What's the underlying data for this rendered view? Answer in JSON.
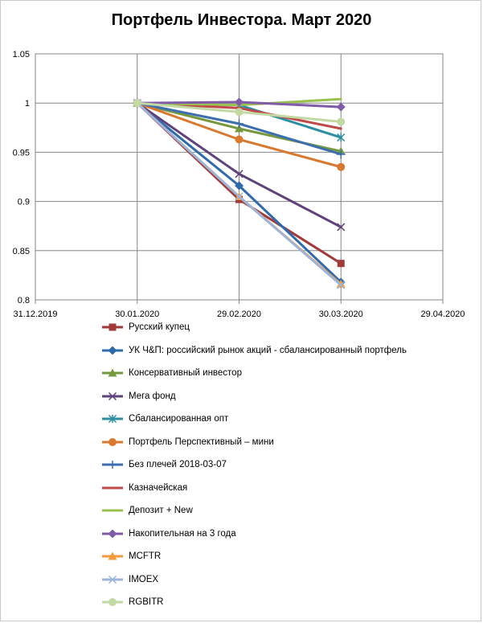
{
  "chart_data": {
    "type": "line",
    "title": "Портфель Инвестора. Март 2020",
    "x_ticks": [
      "31.12.2019",
      "30.01.2020",
      "29.02.2020",
      "30.03.2020",
      "29.04.2020"
    ],
    "x": [
      "30.01.2020",
      "29.02.2020",
      "30.03.2020"
    ],
    "ylim": [
      0.8,
      1.05
    ],
    "y_ticks": [
      "0.8",
      "0.85",
      "0.9",
      "0.95",
      "1",
      "1.05"
    ],
    "grid": true,
    "legend_position": "bottom",
    "series": [
      {
        "name": "Русский купец",
        "values": [
          1,
          0.902,
          0.837
        ],
        "color": "#a33a3a",
        "marker": "square"
      },
      {
        "name": "УК Ч&П: российский рынок акций - сбалансированный портфель",
        "values": [
          1,
          0.916,
          0.818
        ],
        "color": "#2f6bab",
        "marker": "diamond"
      },
      {
        "name": "Консервативный инвестор",
        "values": [
          1,
          0.974,
          0.951
        ],
        "color": "#77993d",
        "marker": "triangle"
      },
      {
        "name": "Мега фонд",
        "values": [
          1,
          0.928,
          0.874
        ],
        "color": "#5e437a",
        "marker": "x"
      },
      {
        "name": "Сбалансированная опт",
        "values": [
          1,
          0.998,
          0.965
        ],
        "color": "#2e8fa0",
        "marker": "star"
      },
      {
        "name": "Портфель Перспективный – мини",
        "values": [
          1,
          0.963,
          0.935
        ],
        "color": "#d9782f",
        "marker": "circle"
      },
      {
        "name": "Без плечей 2018-03-07",
        "values": [
          1,
          0.979,
          0.948
        ],
        "color": "#3d6fb0",
        "marker": "plus"
      },
      {
        "name": "Казначейская",
        "values": [
          1,
          0.995,
          0.974
        ],
        "color": "#c04848",
        "marker": "none"
      },
      {
        "name": "Депозит + New",
        "values": [
          1,
          0.998,
          1.004
        ],
        "color": "#9ac14f",
        "marker": "none"
      },
      {
        "name": "Накопительная на 3 года",
        "values": [
          1,
          1.001,
          0.996
        ],
        "color": "#7f5ba8",
        "marker": "diamond"
      },
      {
        "name": "MCFTR",
        "values": [
          1,
          0.905,
          0.816
        ],
        "color": "#f59a3c",
        "marker": "triangle"
      },
      {
        "name": "IMOEX",
        "values": [
          1,
          0.905,
          0.815
        ],
        "color": "#9db5d8",
        "marker": "x"
      },
      {
        "name": "RGBITR",
        "values": [
          1,
          0.991,
          0.981
        ],
        "color": "#c3d9a3",
        "marker": "circle"
      }
    ]
  }
}
